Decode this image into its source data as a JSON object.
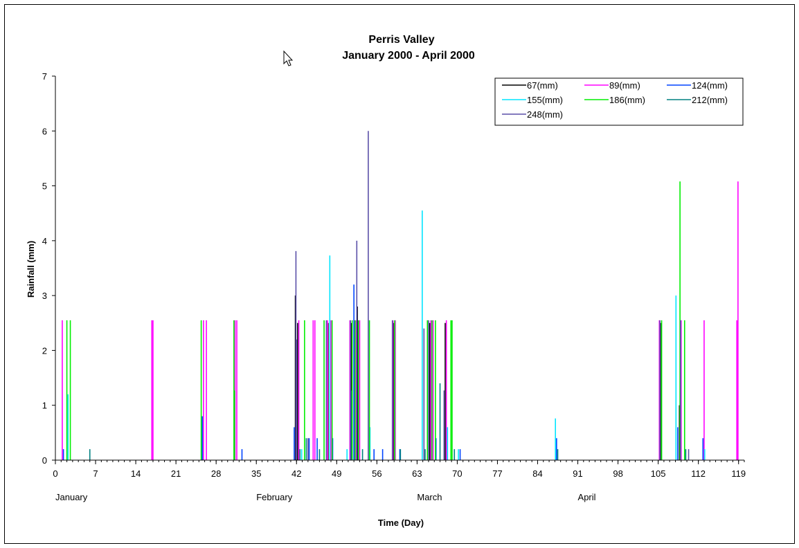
{
  "chart_data": {
    "type": "bar",
    "title": "Perris Valley",
    "subtitle": "January 2000 - April 2000",
    "xlabel": "Time (Day)",
    "ylabel": "Rainfall (mm)",
    "xlim": [
      0,
      120
    ],
    "ylim": [
      0,
      7
    ],
    "x_ticks": [
      0,
      7,
      14,
      21,
      28,
      35,
      42,
      49,
      56,
      63,
      70,
      77,
      84,
      91,
      98,
      105,
      112,
      119
    ],
    "y_ticks": [
      0,
      1,
      2,
      3,
      4,
      5,
      6,
      7
    ],
    "month_labels": [
      {
        "label": "January",
        "x": 0
      },
      {
        "label": "February",
        "x": 35
      },
      {
        "label": "March",
        "x": 63
      },
      {
        "label": "April",
        "x": 91
      }
    ],
    "grid": false,
    "legend_position": "top-right",
    "series": [
      {
        "name": "67(mm)",
        "color": "#000000",
        "points": [
          [
            41.8,
            3.0
          ],
          [
            42.2,
            2.5
          ],
          [
            47.5,
            2.5
          ],
          [
            51.6,
            2.5
          ],
          [
            52.6,
            2.8
          ],
          [
            58.9,
            2.5
          ],
          [
            65.2,
            2.5
          ],
          [
            67.9,
            2.5
          ],
          [
            105.4,
            2.5
          ],
          [
            108.7,
            1.0
          ]
        ]
      },
      {
        "name": "89(mm)",
        "color": "#ff00ff",
        "points": [
          [
            1.2,
            2.55
          ],
          [
            16.8,
            2.55
          ],
          [
            17.0,
            2.55
          ],
          [
            25.8,
            2.55
          ],
          [
            26.3,
            2.55
          ],
          [
            31.3,
            2.55
          ],
          [
            31.6,
            2.55
          ],
          [
            42.4,
            2.55
          ],
          [
            44.9,
            2.55
          ],
          [
            45.2,
            2.55
          ],
          [
            47.4,
            2.55
          ],
          [
            48.0,
            2.55
          ],
          [
            51.3,
            2.55
          ],
          [
            52.4,
            2.55
          ],
          [
            53.0,
            2.55
          ],
          [
            58.8,
            2.55
          ],
          [
            59.2,
            2.55
          ],
          [
            65.4,
            2.55
          ],
          [
            65.8,
            2.55
          ],
          [
            68.1,
            2.55
          ],
          [
            105.2,
            2.55
          ],
          [
            109.0,
            2.55
          ],
          [
            113.0,
            2.55
          ],
          [
            118.9,
            5.08
          ],
          [
            118.7,
            2.55
          ]
        ]
      },
      {
        "name": "124(mm)",
        "color": "#0044ff",
        "points": [
          [
            1.4,
            0.2
          ],
          [
            25.6,
            0.8
          ],
          [
            32.5,
            0.2
          ],
          [
            41.6,
            0.6
          ],
          [
            44.2,
            0.4
          ],
          [
            45.6,
            0.4
          ],
          [
            48.3,
            0.4
          ],
          [
            52.0,
            3.2
          ],
          [
            55.5,
            0.2
          ],
          [
            57.0,
            0.2
          ],
          [
            60.0,
            0.2
          ],
          [
            66.3,
            0.4
          ],
          [
            70.5,
            0.2
          ],
          [
            87.3,
            0.4
          ],
          [
            108.4,
            0.6
          ],
          [
            112.8,
            0.4
          ]
        ]
      },
      {
        "name": "155(mm)",
        "color": "#00e5ff",
        "points": [
          [
            2.2,
            1.2
          ],
          [
            42.9,
            0.2
          ],
          [
            47.8,
            3.73
          ],
          [
            50.8,
            0.2
          ],
          [
            54.8,
            0.6
          ],
          [
            63.9,
            4.55
          ],
          [
            68.3,
            0.6
          ],
          [
            70.2,
            0.2
          ],
          [
            87.1,
            0.76
          ],
          [
            108.1,
            3.0
          ],
          [
            113.1,
            0.2
          ]
        ]
      },
      {
        "name": "186(mm)",
        "color": "#00ee00",
        "points": [
          [
            2.0,
            2.55
          ],
          [
            2.6,
            2.55
          ],
          [
            25.4,
            2.55
          ],
          [
            31.1,
            2.55
          ],
          [
            31.2,
            1.27
          ],
          [
            43.4,
            2.55
          ],
          [
            46.8,
            2.55
          ],
          [
            48.2,
            2.55
          ],
          [
            51.7,
            2.55
          ],
          [
            52.2,
            2.55
          ],
          [
            52.8,
            2.55
          ],
          [
            54.7,
            2.55
          ],
          [
            59.1,
            2.55
          ],
          [
            64.8,
            2.55
          ],
          [
            65.6,
            2.55
          ],
          [
            66.2,
            2.55
          ],
          [
            68.9,
            2.55
          ],
          [
            69.1,
            2.55
          ],
          [
            105.6,
            2.55
          ],
          [
            108.8,
            5.08
          ],
          [
            109.6,
            2.55
          ]
        ]
      },
      {
        "name": "212(mm)",
        "color": "#008080",
        "points": [
          [
            6.0,
            0.2
          ],
          [
            42.6,
            0.2
          ],
          [
            43.7,
            0.4
          ],
          [
            46.0,
            0.2
          ],
          [
            51.5,
            1.27
          ],
          [
            53.5,
            0.2
          ],
          [
            60.1,
            0.2
          ],
          [
            64.4,
            0.2
          ],
          [
            67.0,
            1.4
          ],
          [
            69.5,
            0.2
          ],
          [
            87.5,
            0.2
          ],
          [
            109.8,
            0.2
          ]
        ]
      },
      {
        "name": "248(mm)",
        "color": "#5a4fa8",
        "points": [
          [
            41.9,
            3.81
          ],
          [
            42.0,
            2.2
          ],
          [
            44.0,
            0.4
          ],
          [
            47.2,
            2.55
          ],
          [
            51.4,
            2.55
          ],
          [
            52.5,
            4.0
          ],
          [
            54.5,
            6.0
          ],
          [
            58.7,
            2.55
          ],
          [
            64.2,
            2.4
          ],
          [
            65.0,
            2.55
          ],
          [
            67.7,
            1.27
          ],
          [
            105.3,
            2.55
          ],
          [
            108.9,
            2.55
          ],
          [
            110.3,
            0.2
          ]
        ]
      }
    ]
  }
}
